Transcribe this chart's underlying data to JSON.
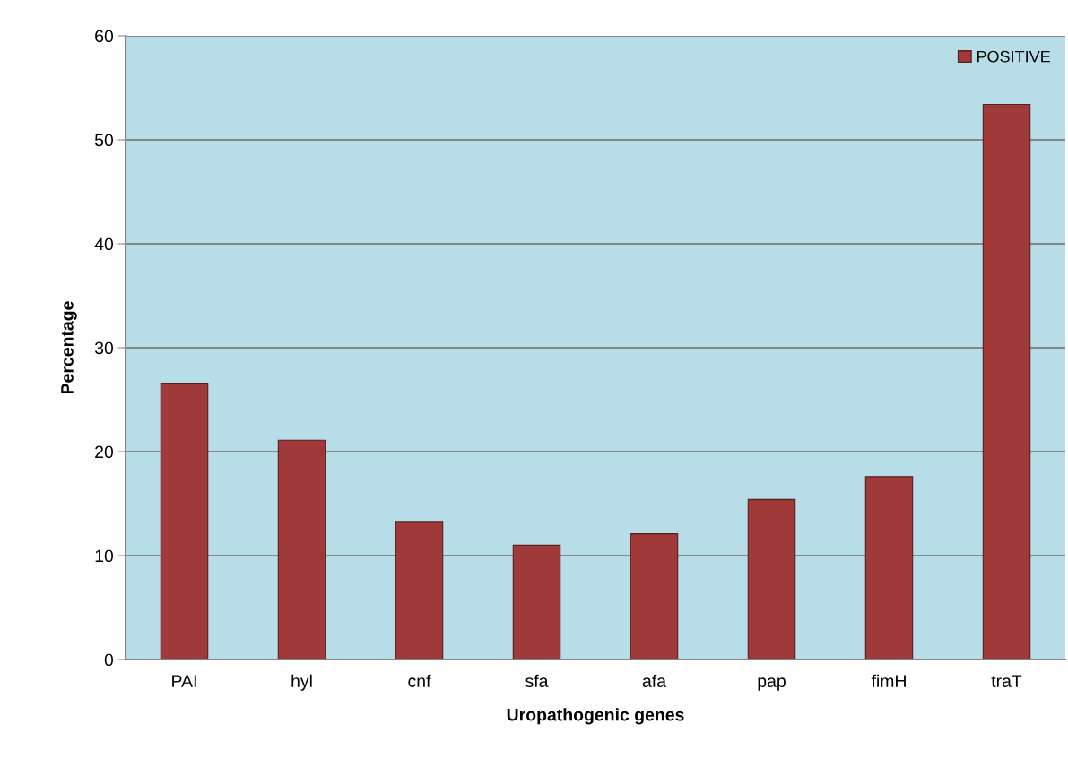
{
  "chart_data": {
    "type": "bar",
    "xlabel": "Uropathogenic genes",
    "ylabel": "Percentage",
    "categories": [
      "PAI",
      "hyl",
      "cnf",
      "sfa",
      "afa",
      "pap",
      "fimH",
      "traT"
    ],
    "series": [
      {
        "name": "POSITIVE",
        "color": "#a03a38",
        "values": [
          26.6,
          21.1,
          13.2,
          11.0,
          12.1,
          15.4,
          17.6,
          53.4
        ]
      }
    ],
    "ylim": [
      0,
      60
    ],
    "yticks": [
      0,
      10,
      20,
      30,
      40,
      50,
      60
    ],
    "grid": "y",
    "legend": "top right"
  }
}
